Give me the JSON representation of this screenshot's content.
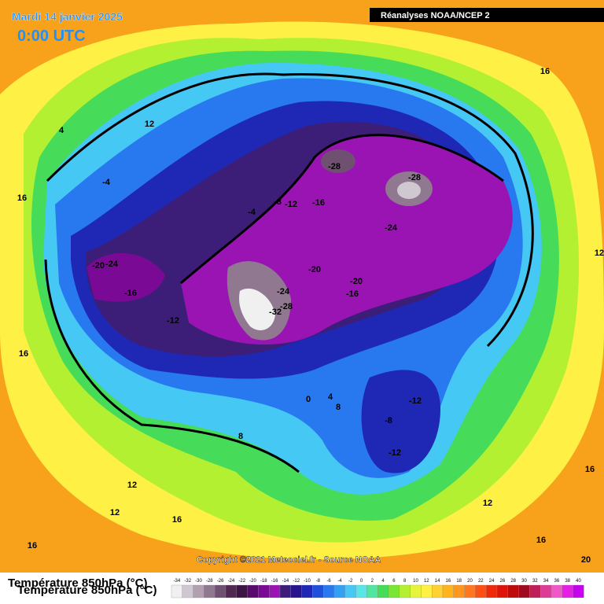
{
  "header": {
    "date": "Mardi 14 janvier 2025",
    "time": "0:00 UTC",
    "source": "Réanalyses NOAA/NCEP 2"
  },
  "map": {
    "contour_labels": [
      "12",
      "4",
      "16",
      "-4",
      "-4",
      "-8",
      "-12",
      "-16",
      "-28",
      "-28",
      "-24",
      "-20",
      "-24",
      "-16",
      "-12",
      "-20",
      "-24",
      "-28",
      "-32",
      "-20",
      "-16",
      "16",
      "12",
      "16",
      "0",
      "4",
      "8",
      "-12",
      "-8",
      "-12",
      "8",
      "12",
      "12",
      "16",
      "16",
      "12",
      "16",
      "16",
      "20"
    ],
    "copyright": "Copyright ©2021 Meteociel.fr - Source NOAA"
  },
  "legend": {
    "title": "Température 850hPa (°C)",
    "ticks": [
      -34,
      -32,
      -30,
      -28,
      -26,
      -24,
      -22,
      -20,
      -18,
      -16,
      -14,
      -12,
      -10,
      -8,
      -6,
      -4,
      -2,
      0,
      2,
      4,
      6,
      8,
      10,
      12,
      14,
      16,
      18,
      20,
      22,
      24,
      26,
      28,
      30,
      32,
      34,
      36,
      38,
      40
    ],
    "colors": [
      "#f0f0f0",
      "#d0c8d0",
      "#b0a0b0",
      "#907890",
      "#705070",
      "#502850",
      "#3c1446",
      "#5a0a6e",
      "#7a0a96",
      "#9a14b4",
      "#3c1e78",
      "#28148c",
      "#1e28b4",
      "#1e50dc",
      "#2878f0",
      "#32a0f5",
      "#46c8f5",
      "#5ae6e6",
      "#50e6a0",
      "#46dc5a",
      "#78e632",
      "#b4f032",
      "#e6f53c",
      "#fff046",
      "#ffd232",
      "#ffb41e",
      "#ff961e",
      "#ff781e",
      "#ff5014",
      "#f0280a",
      "#dc140a",
      "#be0a0a",
      "#a00a1e",
      "#be1e5a",
      "#dc3c96",
      "#f05ac8",
      "#e61ee6",
      "#c800f0"
    ]
  }
}
